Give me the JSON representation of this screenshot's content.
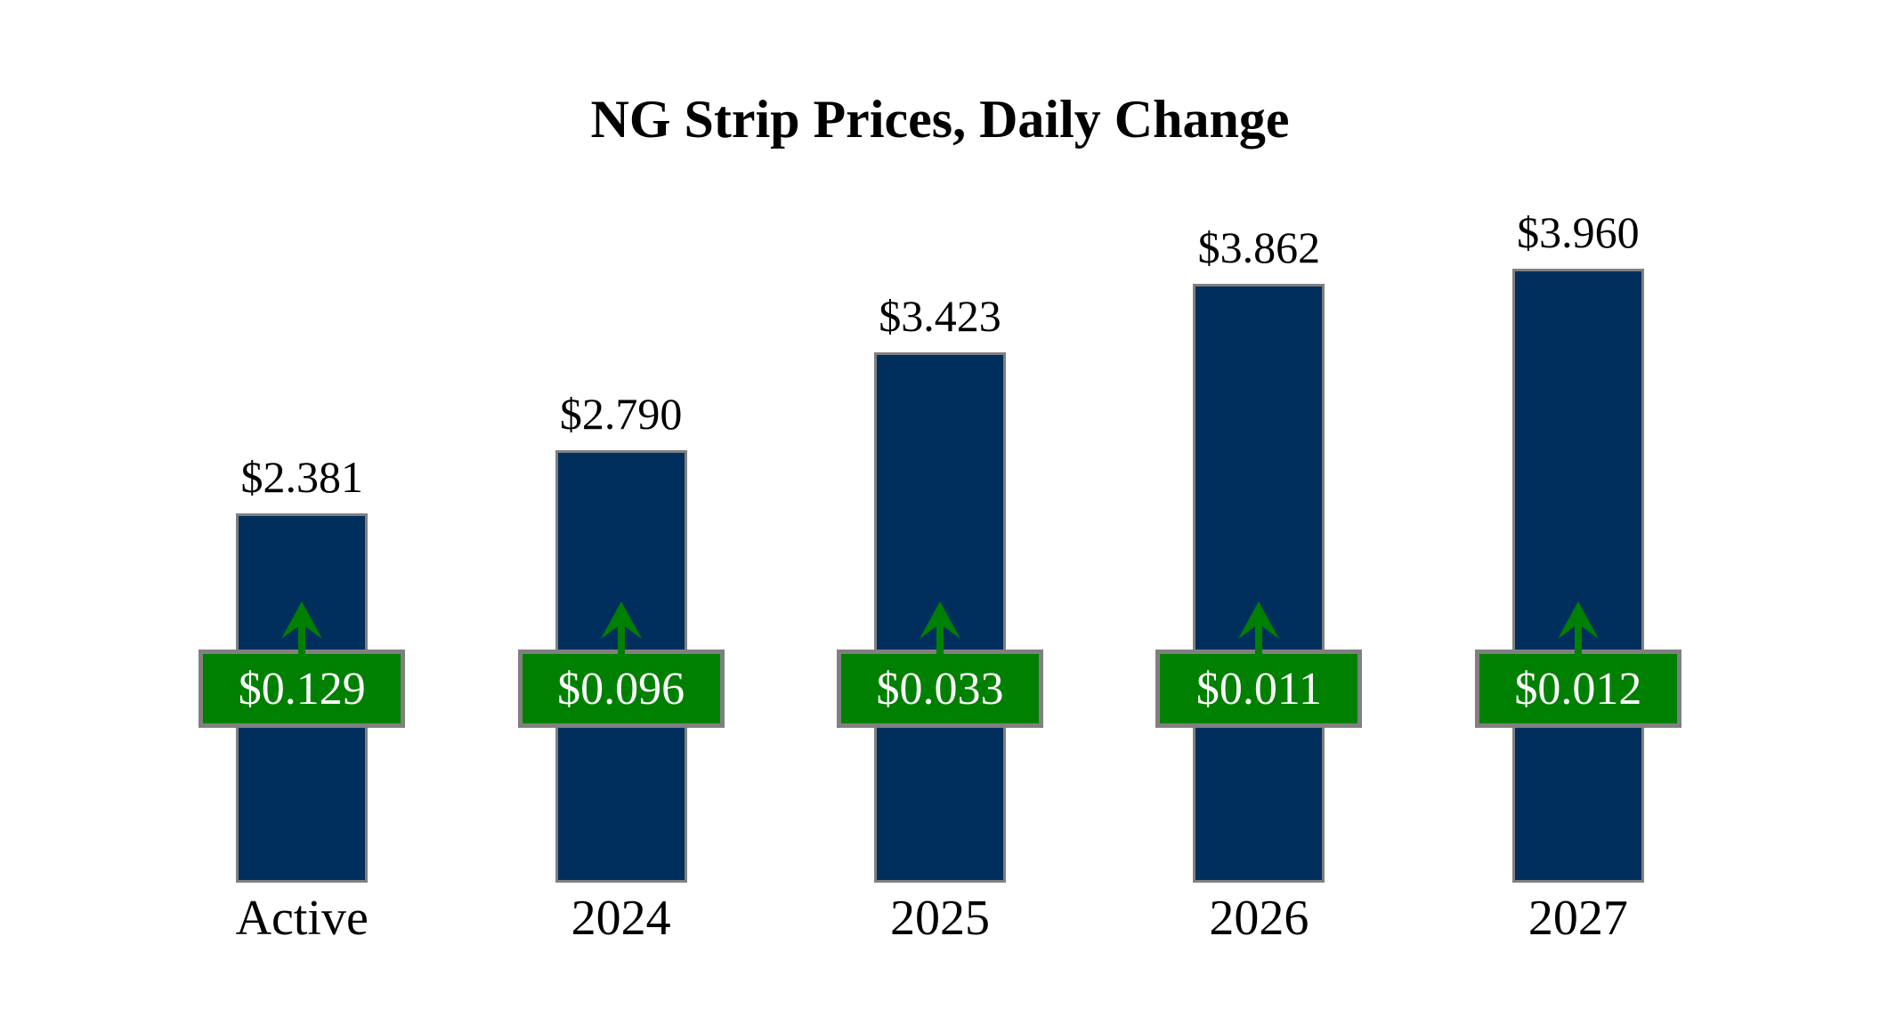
{
  "chart_data": {
    "type": "bar",
    "title": "NG Strip Prices, Daily Change",
    "categories": [
      "Active",
      "2024",
      "2025",
      "2026",
      "2027"
    ],
    "series": [
      {
        "name": "NG Strip Price ($)",
        "values": [
          2.381,
          2.79,
          3.423,
          3.862,
          3.96
        ]
      },
      {
        "name": "Daily Change ($)",
        "values": [
          0.129,
          0.096,
          0.033,
          0.011,
          0.012
        ]
      }
    ],
    "price_labels": [
      "$2.381",
      "$2.790",
      "$3.423",
      "$3.862",
      "$3.960"
    ],
    "change_labels": [
      "$0.129",
      "$0.096",
      "$0.033",
      "$0.011",
      "$0.012"
    ],
    "change_direction": "up",
    "ylim": [
      0,
      4.6
    ],
    "grid": false,
    "axes_shown": false,
    "legend": "none",
    "colors": {
      "bar": "#002f5d",
      "bar_border": "#808080",
      "change_badge": "#008000",
      "badge_border": "#808080",
      "badge_text": "#ffffff",
      "arrow": "#008000",
      "label_text": "#000000",
      "background": "#ffffff"
    }
  }
}
